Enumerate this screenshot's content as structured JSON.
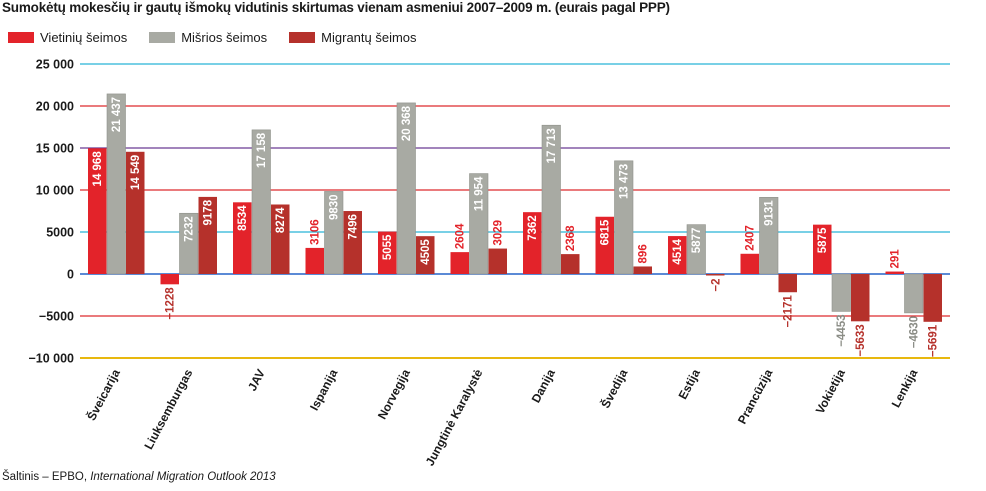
{
  "title": "Sumokėtų mokesčių ir gautų išmokų vidutinis skirtumas vienam asmeniui 2007–2009 m. (eurais pagal PPP)",
  "source_prefix": "Šaltinis – EPBO, ",
  "source_italic": "International Migration Outlook 2013",
  "colors": {
    "vietiniu": "#e3232a",
    "misrios": "#a8aaa3",
    "migrantu": "#b5312b",
    "grid_cyan": "#27b5d8",
    "grid_red": "#de2b2f",
    "grid_purple": "#6b3b93",
    "grid_blue": "#2563c9",
    "grid_yellow": "#e8b80e"
  },
  "chart_data": {
    "type": "bar",
    "title": "Sumokėtų mokesčių ir gautų išmokų vidutinis skirtumas vienam asmeniui 2007–2009 m. (eurais pagal PPP)",
    "categories": [
      "Šveicarija",
      "Liuksemburgas",
      "JAV",
      "Ispanija",
      "Norvegija",
      "Jungtinė Karalystė",
      "Danija",
      "Švedija",
      "Estija",
      "Prancūzija",
      "Vokietija",
      "Lenkija"
    ],
    "series": [
      {
        "name": "Vietinių šeimos",
        "values": [
          14968,
          -1228,
          8534,
          3106,
          5055,
          2604,
          7362,
          6815,
          4514,
          2407,
          5875,
          291
        ],
        "labels": [
          "14 968",
          "−1228",
          "8534",
          "3106",
          "5055",
          "2604",
          "7362",
          "6815",
          "4514",
          "2407",
          "5875",
          "291"
        ]
      },
      {
        "name": "Mišrios šeimos",
        "values": [
          21437,
          7232,
          17158,
          9830,
          20368,
          11954,
          17713,
          13473,
          5877,
          9131,
          -4453,
          -4630
        ],
        "labels": [
          "21 437",
          "7232",
          "17 158",
          "9830",
          "20 368",
          "11 954",
          "17 713",
          "13 473",
          "5877",
          "9131",
          "−4453",
          "−4630"
        ]
      },
      {
        "name": "Migrantų šeimos",
        "values": [
          14549,
          9178,
          8274,
          7496,
          4505,
          3029,
          2368,
          896,
          -2,
          -2171,
          -5633,
          -5691
        ],
        "labels": [
          "14 549",
          "9178",
          "8274",
          "7496",
          "4505",
          "3029",
          "2368",
          "896",
          "−2",
          "−2171",
          "−5633",
          "−5691"
        ]
      }
    ],
    "yticks": [
      25000,
      20000,
      15000,
      10000,
      5000,
      0,
      -5000,
      -10000
    ],
    "ytick_labels": [
      "25 000",
      "20 000",
      "15 000",
      "10 000",
      "5000",
      "0",
      "−5000",
      "−10 000"
    ],
    "ylim": [
      -10000,
      25000
    ],
    "grid": true,
    "legend_position": "top-left"
  }
}
